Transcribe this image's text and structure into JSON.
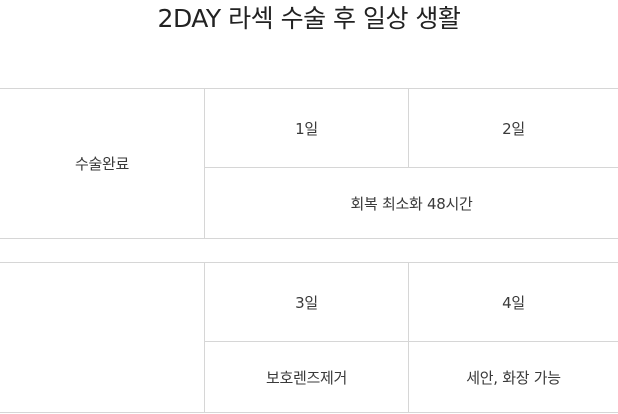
{
  "title": "2DAY 라섹 수술 후 일상 생활",
  "table1": {
    "row_label": "수술완료",
    "day_a": "1일",
    "day_b": "2일",
    "note": "회복 최소화 48시간"
  },
  "table2": {
    "row_label": "",
    "day_a": "3일",
    "day_b": "4일",
    "note_a": "보호렌즈제거",
    "note_b": "세안, 화장 가능"
  },
  "colors": {
    "border": "#d6d6d6",
    "text": "#3a3a3a",
    "title": "#222222"
  }
}
